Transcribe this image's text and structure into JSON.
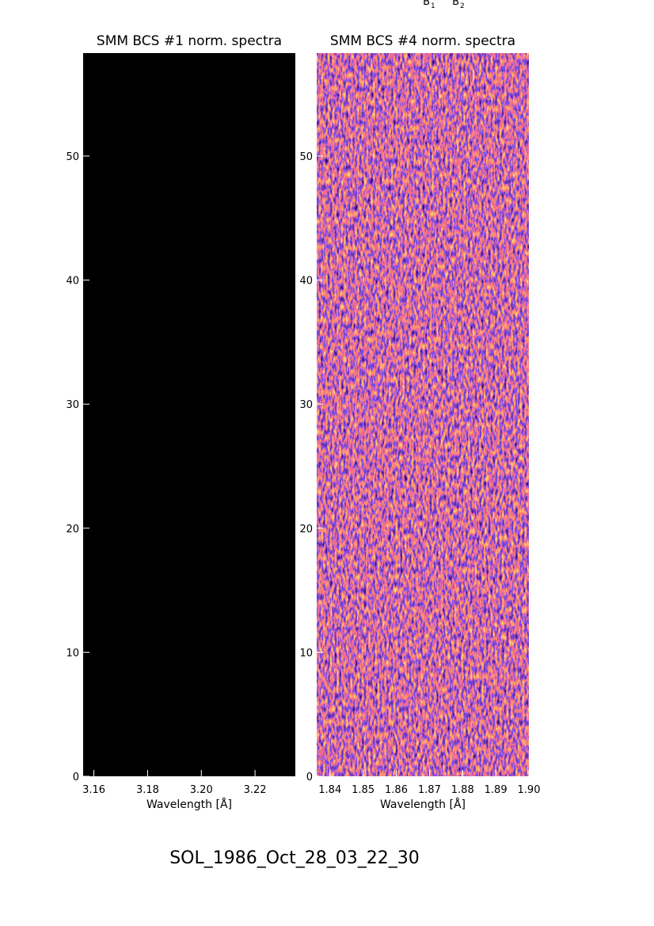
{
  "chart_data": [
    {
      "type": "image",
      "title": "SMM BCS #1 norm. spectra",
      "xlabel": "Wavelength [Å]",
      "xlim": [
        3.156,
        3.235
      ],
      "xticks": [
        {
          "value": 3.16,
          "label": "3.16"
        },
        {
          "value": 3.18,
          "label": "3.18"
        },
        {
          "value": 3.2,
          "label": "3.20"
        },
        {
          "value": 3.22,
          "label": "3.22"
        }
      ],
      "ylim": [
        0,
        58.3
      ],
      "yticks": [
        0,
        10,
        20,
        30,
        40,
        50
      ]
    },
    {
      "type": "image",
      "title": "SMM BCS #4 norm. spectra",
      "xlabel": "Wavelength [Å]",
      "xlim": [
        1.836,
        1.9
      ],
      "xticks": [
        {
          "value": 1.84,
          "label": "1.84"
        },
        {
          "value": 1.85,
          "label": "1.85"
        },
        {
          "value": 1.86,
          "label": "1.86"
        },
        {
          "value": 1.87,
          "label": "1.87"
        },
        {
          "value": 1.88,
          "label": "1.88"
        },
        {
          "value": 1.89,
          "label": "1.89"
        },
        {
          "value": 1.9,
          "label": "1.90"
        }
      ],
      "ylim": [
        0,
        58.3
      ],
      "yticks": [
        0,
        10,
        20,
        30,
        40,
        50
      ]
    }
  ],
  "top_labels": [
    {
      "base": "B",
      "sub": "1"
    },
    {
      "base": "B",
      "sub": "2"
    }
  ],
  "footer": "SOL_1986_Oct_28_03_22_30"
}
